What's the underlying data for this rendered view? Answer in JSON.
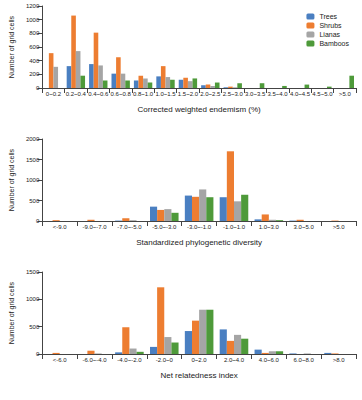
{
  "chart_data": [
    {
      "type": "bar",
      "x_label": "Corrected weighted endemism (%)",
      "y_label": "Number of grid cells",
      "categories": [
        "0~0.2",
        "0.2~0.4",
        "0.4~0.6",
        "0.6~0.8",
        "0.8~1.0",
        "1.0~1.5",
        "1.5~2.0",
        "2.0~2.5",
        "2.5~3.0",
        "3.0~3.5",
        "3.5~4.0",
        "4.0~4.5",
        "4.5~5.0",
        ">5.0"
      ],
      "series": [
        {
          "name": "Trees",
          "color": "#4a7fc1",
          "values": [
            0,
            320,
            350,
            210,
            110,
            170,
            120,
            40,
            10,
            0,
            0,
            0,
            0,
            0
          ]
        },
        {
          "name": "Shrubs",
          "color": "#ed7d31",
          "values": [
            510,
            1060,
            810,
            450,
            180,
            320,
            150,
            50,
            20,
            0,
            0,
            0,
            0,
            0
          ]
        },
        {
          "name": "Lianas",
          "color": "#a5a5a5",
          "values": [
            310,
            540,
            330,
            210,
            140,
            160,
            100,
            30,
            10,
            0,
            0,
            0,
            0,
            0
          ]
        },
        {
          "name": "Bamboos",
          "color": "#4e9a3a",
          "values": [
            0,
            180,
            110,
            110,
            80,
            120,
            140,
            80,
            70,
            70,
            30,
            50,
            20,
            180
          ]
        }
      ],
      "ylim": [
        0,
        1200
      ],
      "yticks": [
        0,
        200,
        400,
        600,
        800,
        1000,
        1200
      ],
      "grid": false,
      "legend": "top-right"
    },
    {
      "type": "bar",
      "x_label": "Standardized phylogenetic diversity",
      "y_label": "Number of grid cells",
      "categories": [
        "<-9.0",
        "-9.0~-7.0",
        "-7.0~-5.0",
        "-5.0~-3.0",
        "-3.0~-1.0",
        "-1.0~1.0",
        "1.0~3.0",
        "3.0~5.0",
        ">5.0"
      ],
      "series": [
        {
          "name": "Trees",
          "color": "#4a7fc1",
          "values": [
            0,
            0,
            10,
            350,
            620,
            580,
            40,
            10,
            0
          ]
        },
        {
          "name": "Shrubs",
          "color": "#ed7d31",
          "values": [
            20,
            30,
            70,
            270,
            590,
            1700,
            160,
            30,
            10
          ]
        },
        {
          "name": "Lianas",
          "color": "#a5a5a5",
          "values": [
            0,
            0,
            20,
            290,
            770,
            480,
            30,
            0,
            0
          ]
        },
        {
          "name": "Bamboos",
          "color": "#4e9a3a",
          "values": [
            0,
            0,
            0,
            200,
            580,
            640,
            20,
            0,
            0
          ]
        }
      ],
      "ylim": [
        0,
        2000
      ],
      "yticks": [
        0,
        500,
        1000,
        1500,
        2000
      ],
      "grid": false
    },
    {
      "type": "bar",
      "x_label": "Net relatedness index",
      "y_label": "Number of grid cells",
      "categories": [
        "<-6.0",
        "-6.0~-4.0",
        "-4.0~-2.0",
        "-2.0~0",
        "0~2.0",
        "2.0~4.0",
        "4.0~6.0",
        "6.0~8.0",
        ">8.0"
      ],
      "series": [
        {
          "name": "Trees",
          "color": "#4a7fc1",
          "values": [
            0,
            0,
            30,
            130,
            420,
            450,
            80,
            10,
            20
          ]
        },
        {
          "name": "Shrubs",
          "color": "#ed7d31",
          "values": [
            20,
            60,
            490,
            1220,
            610,
            240,
            20,
            0,
            10
          ]
        },
        {
          "name": "Lianas",
          "color": "#a5a5a5",
          "values": [
            0,
            10,
            100,
            310,
            810,
            350,
            50,
            10,
            0
          ]
        },
        {
          "name": "Bamboos",
          "color": "#4e9a3a",
          "values": [
            0,
            0,
            40,
            210,
            810,
            280,
            50,
            0,
            0
          ]
        }
      ],
      "ylim": [
        0,
        1500
      ],
      "yticks": [
        0,
        500,
        1000,
        1500
      ],
      "grid": false
    }
  ]
}
